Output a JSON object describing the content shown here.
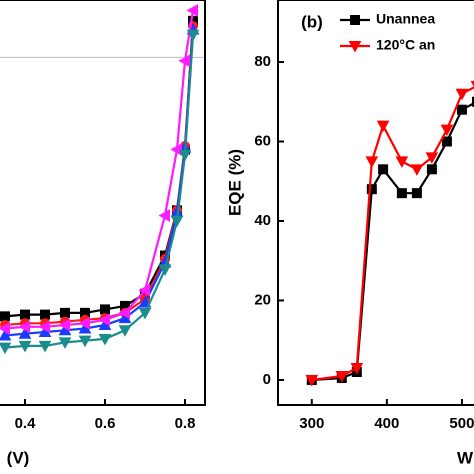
{
  "chart_data": [
    {
      "type": "line",
      "xlabel": "(V)",
      "x": [
        0.35,
        0.4,
        0.45,
        0.5,
        0.55,
        0.6,
        0.65,
        0.7,
        0.75,
        0.78,
        0.8,
        0.82
      ],
      "xlim": [
        0.3,
        0.85
      ],
      "xticks": [
        0.4,
        0.6,
        0.8
      ],
      "ylim": [
        -20,
        3.3
      ],
      "zero_line": true,
      "series": [
        {
          "name": null,
          "color": "#000000",
          "marker": "square",
          "values": [
            -14.9,
            -14.8,
            -14.8,
            -14.7,
            -14.7,
            -14.5,
            -14.3,
            -13.6,
            -11.4,
            -8.8,
            -5.3,
            2.1
          ]
        },
        {
          "name": null,
          "color": "#ff1a1a",
          "marker": "circle",
          "values": [
            -15.4,
            -15.3,
            -15.3,
            -15.2,
            -15.1,
            -15.0,
            -14.7,
            -13.9,
            -11.6,
            -8.8,
            -5.1,
            1.8
          ]
        },
        {
          "name": null,
          "color": "#1a3cff",
          "marker": "triangle-up",
          "values": [
            -16.0,
            -15.9,
            -15.8,
            -15.7,
            -15.6,
            -15.4,
            -15.0,
            -14.1,
            -11.8,
            -8.9,
            -5.2,
            1.6
          ]
        },
        {
          "name": null,
          "color": "#ff1aff",
          "marker": "triangle-left",
          "values": [
            -15.6,
            -15.5,
            -15.5,
            -15.4,
            -15.3,
            -15.1,
            -14.7,
            -13.4,
            -9.1,
            -5.3,
            -0.2,
            2.7
          ]
        },
        {
          "name": null,
          "color": "#1a8c8c",
          "marker": "triangle-down",
          "values": [
            -16.7,
            -16.6,
            -16.6,
            -16.4,
            -16.3,
            -16.2,
            -15.7,
            -14.7,
            -12.2,
            -9.4,
            -5.6,
            1.3
          ]
        }
      ]
    },
    {
      "type": "line",
      "panel_label": "(b)",
      "xlabel": "W",
      "ylabel": "EQE (%)",
      "x": [
        300,
        340,
        360,
        380,
        395,
        420,
        440,
        460,
        480,
        500,
        520
      ],
      "xlim": [
        255,
        580
      ],
      "xticks": [
        300,
        400,
        500
      ],
      "ylim": [
        -6.3,
        95.6
      ],
      "yticks": [
        0,
        20,
        40,
        60,
        80
      ],
      "series": [
        {
          "name": "Unannea",
          "color": "#000000",
          "marker": "square",
          "values": [
            0,
            0.5,
            2,
            48,
            53,
            47,
            47,
            53,
            60,
            68,
            70
          ]
        },
        {
          "name": "120°C an",
          "color": "#ff0000",
          "marker": "triangle-down",
          "values": [
            0,
            1,
            3,
            55,
            64,
            55,
            53,
            56,
            63,
            72,
            74
          ]
        }
      ]
    }
  ]
}
